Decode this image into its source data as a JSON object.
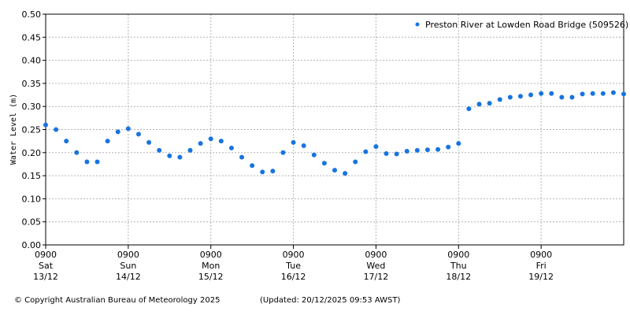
{
  "chart_data": {
    "type": "scatter",
    "y_label": "Water Level (m)",
    "legend_position": "upper right",
    "grid": true,
    "footer_left": "© Copyright Australian Bureau of Meteorology 2025",
    "footer_right": "(Updated: 20/12/2025 09:53 AWST)",
    "xlim": [
      "13/12 0900",
      "20/12 0900"
    ],
    "xticks": [
      {
        "value": "13/12 0900",
        "label": [
          "0900",
          "Sat",
          "13/12"
        ]
      },
      {
        "value": "14/12 0900",
        "label": [
          "0900",
          "Sun",
          "14/12"
        ]
      },
      {
        "value": "15/12 0900",
        "label": [
          "0900",
          "Mon",
          "15/12"
        ]
      },
      {
        "value": "16/12 0900",
        "label": [
          "0900",
          "Tue",
          "16/12"
        ]
      },
      {
        "value": "17/12 0900",
        "label": [
          "0900",
          "Wed",
          "17/12"
        ]
      },
      {
        "value": "18/12 0900",
        "label": [
          "0900",
          "Thu",
          "18/12"
        ]
      },
      {
        "value": "19/12 0900",
        "label": [
          "0900",
          "Fri",
          "19/12"
        ]
      }
    ],
    "ylim": [
      0,
      0.5
    ],
    "yticks": [
      {
        "value": 0,
        "label": "0.00"
      },
      {
        "value": 0.05,
        "label": "0.05"
      },
      {
        "value": 0.1,
        "label": "0.10"
      },
      {
        "value": 0.15,
        "label": "0.15"
      },
      {
        "value": 0.2,
        "label": "0.20"
      },
      {
        "value": 0.25,
        "label": "0.25"
      },
      {
        "value": 0.3,
        "label": "0.30"
      },
      {
        "value": 0.35,
        "label": "0.35"
      },
      {
        "value": 0.4,
        "label": "0.40"
      },
      {
        "value": 0.45,
        "label": "0.45"
      },
      {
        "value": 0.5,
        "label": "0.50"
      }
    ],
    "x": [
      "13/12 0900",
      "13/12 1200",
      "13/12 1500",
      "13/12 1800",
      "13/12 2100",
      "14/12 0000",
      "14/12 0300",
      "14/12 0600",
      "14/12 0900",
      "14/12 1200",
      "14/12 1500",
      "14/12 1800",
      "14/12 2100",
      "15/12 0000",
      "15/12 0300",
      "15/12 0600",
      "15/12 0900",
      "15/12 1200",
      "15/12 1500",
      "15/12 1800",
      "15/12 2100",
      "16/12 0000",
      "16/12 0300",
      "16/12 0600",
      "16/12 0900",
      "16/12 1200",
      "16/12 1500",
      "16/12 1800",
      "16/12 2100",
      "17/12 0000",
      "17/12 0300",
      "17/12 0600",
      "17/12 0900",
      "17/12 1200",
      "17/12 1500",
      "17/12 1800",
      "17/12 2100",
      "18/12 0000",
      "18/12 0300",
      "18/12 0600",
      "18/12 0900",
      "18/12 1200",
      "18/12 1500",
      "18/12 1800",
      "18/12 2100",
      "19/12 0000",
      "19/12 0300",
      "19/12 0600",
      "19/12 0900",
      "19/12 1200",
      "19/12 1500",
      "19/12 1800",
      "19/12 2100",
      "20/12 0000",
      "20/12 0300",
      "20/12 0600",
      "20/12 0900"
    ],
    "series": [
      {
        "name": "Preston River at Lowden Road Bridge (509526)",
        "color": "#1874e0",
        "values": [
          0.26,
          0.25,
          0.225,
          0.2,
          0.18,
          0.18,
          0.225,
          0.245,
          0.252,
          0.24,
          0.222,
          0.205,
          0.193,
          0.19,
          0.205,
          0.22,
          0.23,
          0.225,
          0.21,
          0.19,
          0.172,
          0.158,
          0.16,
          0.2,
          0.222,
          0.215,
          0.195,
          0.177,
          0.162,
          0.155,
          0.18,
          0.202,
          0.213,
          0.198,
          0.197,
          0.203,
          0.205,
          0.206,
          0.207,
          0.212,
          0.22,
          0.295,
          0.305,
          0.307,
          0.315,
          0.32,
          0.322,
          0.325,
          0.328,
          0.328,
          0.32,
          0.32,
          0.327,
          0.328,
          0.328,
          0.33,
          0.327
        ]
      }
    ]
  }
}
